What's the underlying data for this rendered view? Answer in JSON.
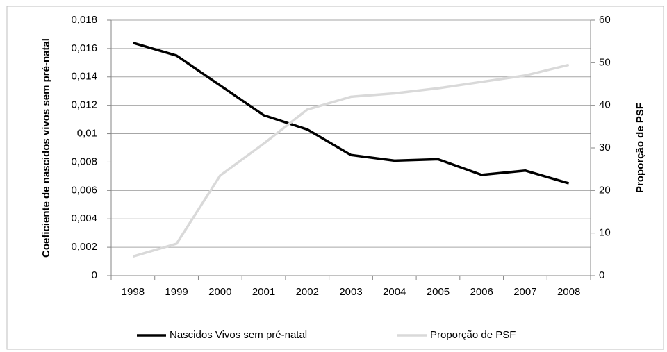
{
  "chart_data": {
    "type": "line",
    "categories": [
      "1998",
      "1999",
      "2000",
      "2001",
      "2002",
      "2003",
      "2004",
      "2005",
      "2006",
      "2007",
      "2008"
    ],
    "series": [
      {
        "name": "Nascidos Vivos sem pré-natal",
        "color": "#000000",
        "axis": "y",
        "values": [
          0.0164,
          0.0155,
          0.0134,
          0.0113,
          0.0103,
          0.0085,
          0.0081,
          0.0082,
          0.0071,
          0.0074,
          0.0065
        ]
      },
      {
        "name": "Proporção de PSF",
        "color": "#d9d9d9",
        "axis": "y2",
        "values": [
          4.5,
          7.5,
          23.5,
          31,
          39,
          42,
          42.8,
          44,
          45.5,
          47,
          49.5
        ]
      }
    ],
    "ylabel": "Coeficiente de nascidos vivos sem pré-natal",
    "y2label": "Proporção de PSF",
    "ylim": [
      0,
      0.018
    ],
    "yticks": [
      0,
      {
        "value": 0.002,
        "label": "0,002"
      },
      {
        "value": 0.004,
        "label": "0,004"
      },
      {
        "value": 0.006,
        "label": "0,006"
      },
      {
        "value": 0.008,
        "label": "0,008"
      },
      {
        "value": 0.01,
        "label": "0,01"
      },
      {
        "value": 0.012,
        "label": "0,012"
      },
      {
        "value": 0.014,
        "label": "0,014"
      },
      {
        "value": 0.016,
        "label": "0,016"
      },
      {
        "value": 0.018,
        "label": "0,018"
      }
    ],
    "y2lim": [
      0,
      60
    ],
    "y2ticks": [
      0,
      10,
      20,
      30,
      40,
      50,
      60
    ],
    "grid": true,
    "legend": "bottom"
  }
}
